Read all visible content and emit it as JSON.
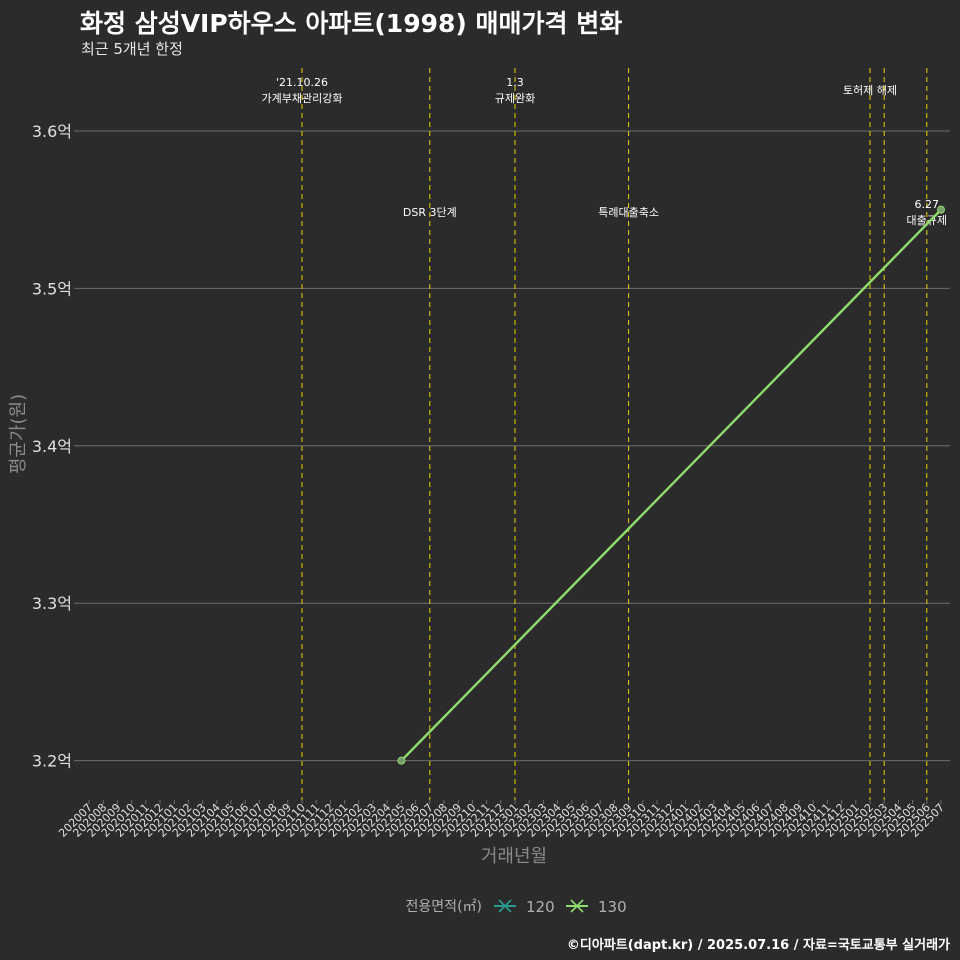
{
  "header": {
    "title": "화정 삼성VIP하우스 아파트(1998) 매매가격 변화",
    "subtitle": "최근 5개년 한정"
  },
  "caption": "©디아파트(dapt.kr) / 2025.07.16 / 자료=국토교통부 실거래가",
  "colors": {
    "background": "#2b2b2b",
    "grid": "#6e6e6e",
    "event_line": "#e6d300",
    "series_120": "#2a9d8f",
    "series_130": "#8fdc6e"
  },
  "chart_data": {
    "type": "line",
    "title": "화정 삼성VIP하우스 아파트(1998) 매매가격 변화",
    "subtitle": "최근 5개년 한정",
    "xlabel": "거래년월",
    "ylabel": "평균가(원)",
    "categories": [
      "202007",
      "202008",
      "202009",
      "202010",
      "202011",
      "202012",
      "202101",
      "202102",
      "202103",
      "202104",
      "202105",
      "202106",
      "202107",
      "202108",
      "202109",
      "202110",
      "202111",
      "202112",
      "202201",
      "202202",
      "202203",
      "202204",
      "202205",
      "202206",
      "202207",
      "202208",
      "202209",
      "202210",
      "202211",
      "202212",
      "202301",
      "202302",
      "202303",
      "202304",
      "202305",
      "202306",
      "202307",
      "202308",
      "202309",
      "202310",
      "202311",
      "202312",
      "202401",
      "202402",
      "202403",
      "202404",
      "202405",
      "202406",
      "202407",
      "202408",
      "202409",
      "202410",
      "202411",
      "202412",
      "202501",
      "202502",
      "202503",
      "202504",
      "202505",
      "202506",
      "202507"
    ],
    "ylim": [
      3.175,
      3.64
    ],
    "yticks": [
      3.2,
      3.3,
      3.4,
      3.5,
      3.6
    ],
    "ytick_labels": [
      "3.2억",
      "3.3억",
      "3.4억",
      "3.5억",
      "3.6억"
    ],
    "legend": {
      "title": "전용면적(㎡)",
      "position": "bottom",
      "entries": [
        "120",
        "130"
      ]
    },
    "series": [
      {
        "name": "120",
        "points": []
      },
      {
        "name": "130",
        "points": [
          {
            "x": "202205",
            "y": 3.2
          },
          {
            "x": "202507",
            "y": 3.55
          }
        ]
      }
    ],
    "events": [
      {
        "x": "202110",
        "label": [
          "'21.10.26",
          "가계부채관리강화"
        ],
        "row": "top"
      },
      {
        "x": "202207",
        "label": [
          "DSR 3단계"
        ],
        "row": "middle"
      },
      {
        "x": "202301",
        "label": [
          "1.3",
          "규제완화"
        ],
        "row": "top"
      },
      {
        "x": "202309",
        "label": [
          "특례대출축소"
        ],
        "row": "middle"
      },
      {
        "x": "202502",
        "label": [
          "토허제 해제"
        ],
        "row": "top"
      },
      {
        "x": "202503",
        "label": [],
        "row": "top"
      },
      {
        "x": "202506",
        "label": [
          "6.27",
          "대출규제"
        ],
        "row": "middle"
      }
    ]
  }
}
